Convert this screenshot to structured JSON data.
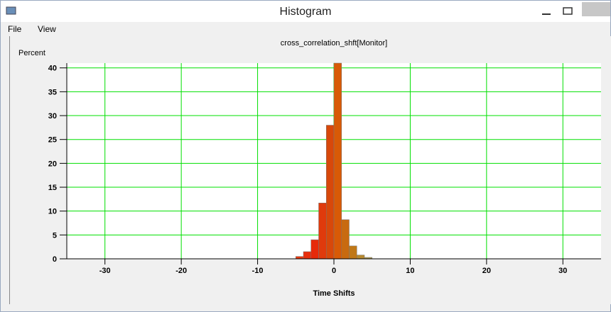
{
  "window": {
    "title": "Histogram",
    "menu": [
      "File",
      "View"
    ]
  },
  "chart_data": {
    "type": "histogram",
    "title": "cross_correlation_shft[Monitor]",
    "y_label": "Percent",
    "x_label": "Time Shifts",
    "bins": [
      -5,
      -4,
      -3,
      -2,
      -1,
      0,
      1,
      2,
      3,
      4,
      5
    ],
    "values": [
      0.5,
      1.5,
      4,
      11.7,
      28,
      41,
      8.2,
      2.7,
      0.8,
      0.3
    ],
    "colors": [
      "#e83a10",
      "#e82e0c",
      "#e62a0a",
      "#e03a0c",
      "#d8480a",
      "#d85a06",
      "#c86a10",
      "#c07818",
      "#b88a30",
      "#b09a50"
    ],
    "xlim": [
      -35,
      35
    ],
    "xticks": [
      -30,
      -20,
      -10,
      0,
      10,
      20,
      30
    ],
    "ylim": [
      0,
      41
    ],
    "yticks": [
      0,
      5,
      10,
      15,
      20,
      25,
      30,
      35,
      40
    ],
    "grid": true,
    "grid_color": "#00e000"
  }
}
